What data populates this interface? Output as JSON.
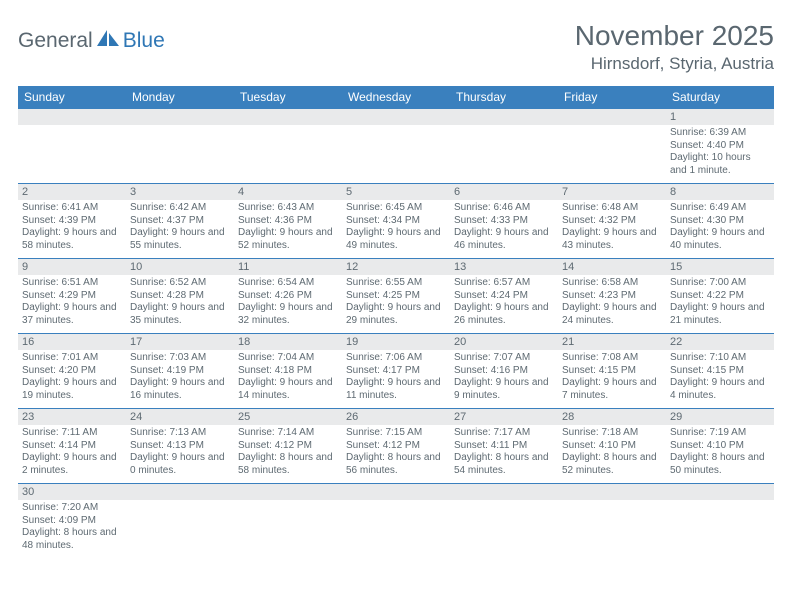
{
  "brand": {
    "general": "General",
    "blue": "Blue"
  },
  "title": "November 2025",
  "location": "Hirnsdorf, Styria, Austria",
  "colors": {
    "header_bg": "#3a80be",
    "header_text": "#ffffff",
    "daynum_bg": "#e9eaeb",
    "body_text": "#5e6a72",
    "logo_gray": "#5a6770",
    "logo_blue": "#2f77b5",
    "rule": "#3a80be"
  },
  "weekdays": [
    "Sunday",
    "Monday",
    "Tuesday",
    "Wednesday",
    "Thursday",
    "Friday",
    "Saturday"
  ],
  "weeks": [
    [
      null,
      null,
      null,
      null,
      null,
      null,
      {
        "n": "1",
        "sr": "Sunrise: 6:39 AM",
        "ss": "Sunset: 4:40 PM",
        "dl": "Daylight: 10 hours and 1 minute."
      }
    ],
    [
      {
        "n": "2",
        "sr": "Sunrise: 6:41 AM",
        "ss": "Sunset: 4:39 PM",
        "dl": "Daylight: 9 hours and 58 minutes."
      },
      {
        "n": "3",
        "sr": "Sunrise: 6:42 AM",
        "ss": "Sunset: 4:37 PM",
        "dl": "Daylight: 9 hours and 55 minutes."
      },
      {
        "n": "4",
        "sr": "Sunrise: 6:43 AM",
        "ss": "Sunset: 4:36 PM",
        "dl": "Daylight: 9 hours and 52 minutes."
      },
      {
        "n": "5",
        "sr": "Sunrise: 6:45 AM",
        "ss": "Sunset: 4:34 PM",
        "dl": "Daylight: 9 hours and 49 minutes."
      },
      {
        "n": "6",
        "sr": "Sunrise: 6:46 AM",
        "ss": "Sunset: 4:33 PM",
        "dl": "Daylight: 9 hours and 46 minutes."
      },
      {
        "n": "7",
        "sr": "Sunrise: 6:48 AM",
        "ss": "Sunset: 4:32 PM",
        "dl": "Daylight: 9 hours and 43 minutes."
      },
      {
        "n": "8",
        "sr": "Sunrise: 6:49 AM",
        "ss": "Sunset: 4:30 PM",
        "dl": "Daylight: 9 hours and 40 minutes."
      }
    ],
    [
      {
        "n": "9",
        "sr": "Sunrise: 6:51 AM",
        "ss": "Sunset: 4:29 PM",
        "dl": "Daylight: 9 hours and 37 minutes."
      },
      {
        "n": "10",
        "sr": "Sunrise: 6:52 AM",
        "ss": "Sunset: 4:28 PM",
        "dl": "Daylight: 9 hours and 35 minutes."
      },
      {
        "n": "11",
        "sr": "Sunrise: 6:54 AM",
        "ss": "Sunset: 4:26 PM",
        "dl": "Daylight: 9 hours and 32 minutes."
      },
      {
        "n": "12",
        "sr": "Sunrise: 6:55 AM",
        "ss": "Sunset: 4:25 PM",
        "dl": "Daylight: 9 hours and 29 minutes."
      },
      {
        "n": "13",
        "sr": "Sunrise: 6:57 AM",
        "ss": "Sunset: 4:24 PM",
        "dl": "Daylight: 9 hours and 26 minutes."
      },
      {
        "n": "14",
        "sr": "Sunrise: 6:58 AM",
        "ss": "Sunset: 4:23 PM",
        "dl": "Daylight: 9 hours and 24 minutes."
      },
      {
        "n": "15",
        "sr": "Sunrise: 7:00 AM",
        "ss": "Sunset: 4:22 PM",
        "dl": "Daylight: 9 hours and 21 minutes."
      }
    ],
    [
      {
        "n": "16",
        "sr": "Sunrise: 7:01 AM",
        "ss": "Sunset: 4:20 PM",
        "dl": "Daylight: 9 hours and 19 minutes."
      },
      {
        "n": "17",
        "sr": "Sunrise: 7:03 AM",
        "ss": "Sunset: 4:19 PM",
        "dl": "Daylight: 9 hours and 16 minutes."
      },
      {
        "n": "18",
        "sr": "Sunrise: 7:04 AM",
        "ss": "Sunset: 4:18 PM",
        "dl": "Daylight: 9 hours and 14 minutes."
      },
      {
        "n": "19",
        "sr": "Sunrise: 7:06 AM",
        "ss": "Sunset: 4:17 PM",
        "dl": "Daylight: 9 hours and 11 minutes."
      },
      {
        "n": "20",
        "sr": "Sunrise: 7:07 AM",
        "ss": "Sunset: 4:16 PM",
        "dl": "Daylight: 9 hours and 9 minutes."
      },
      {
        "n": "21",
        "sr": "Sunrise: 7:08 AM",
        "ss": "Sunset: 4:15 PM",
        "dl": "Daylight: 9 hours and 7 minutes."
      },
      {
        "n": "22",
        "sr": "Sunrise: 7:10 AM",
        "ss": "Sunset: 4:15 PM",
        "dl": "Daylight: 9 hours and 4 minutes."
      }
    ],
    [
      {
        "n": "23",
        "sr": "Sunrise: 7:11 AM",
        "ss": "Sunset: 4:14 PM",
        "dl": "Daylight: 9 hours and 2 minutes."
      },
      {
        "n": "24",
        "sr": "Sunrise: 7:13 AM",
        "ss": "Sunset: 4:13 PM",
        "dl": "Daylight: 9 hours and 0 minutes."
      },
      {
        "n": "25",
        "sr": "Sunrise: 7:14 AM",
        "ss": "Sunset: 4:12 PM",
        "dl": "Daylight: 8 hours and 58 minutes."
      },
      {
        "n": "26",
        "sr": "Sunrise: 7:15 AM",
        "ss": "Sunset: 4:12 PM",
        "dl": "Daylight: 8 hours and 56 minutes."
      },
      {
        "n": "27",
        "sr": "Sunrise: 7:17 AM",
        "ss": "Sunset: 4:11 PM",
        "dl": "Daylight: 8 hours and 54 minutes."
      },
      {
        "n": "28",
        "sr": "Sunrise: 7:18 AM",
        "ss": "Sunset: 4:10 PM",
        "dl": "Daylight: 8 hours and 52 minutes."
      },
      {
        "n": "29",
        "sr": "Sunrise: 7:19 AM",
        "ss": "Sunset: 4:10 PM",
        "dl": "Daylight: 8 hours and 50 minutes."
      }
    ],
    [
      {
        "n": "30",
        "sr": "Sunrise: 7:20 AM",
        "ss": "Sunset: 4:09 PM",
        "dl": "Daylight: 8 hours and 48 minutes."
      },
      null,
      null,
      null,
      null,
      null,
      null
    ]
  ]
}
